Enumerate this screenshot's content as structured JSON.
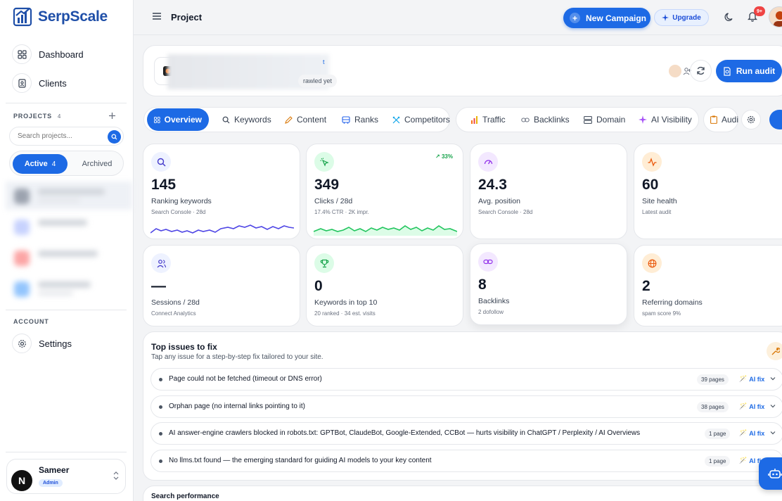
{
  "brand": {
    "name": "SerpScale"
  },
  "nav": {
    "dashboard": "Dashboard",
    "clients": "Clients",
    "settings": "Settings"
  },
  "projects": {
    "heading": "PROJECTS",
    "count": "4",
    "search_placeholder": "Search projects..."
  },
  "segment": {
    "active_label": "Active",
    "active_count": "4",
    "archived_label": "Archived"
  },
  "account": {
    "heading": "ACCOUNT"
  },
  "user": {
    "name": "Sameer",
    "initial": "N",
    "role": "Admin"
  },
  "topbar": {
    "title": "Project",
    "new_campaign": "New Campaign",
    "upgrade": "Upgrade",
    "notifications": "9+"
  },
  "project_card": {
    "tag": "t",
    "crawl_status": "rawled yet",
    "run_audit": "Run audit"
  },
  "tabs": [
    {
      "label": "Overview",
      "icon": "grid-icon"
    },
    {
      "label": "Keywords",
      "icon": "search-icon"
    },
    {
      "label": "Content",
      "icon": "pencil-icon"
    },
    {
      "label": "Ranks",
      "icon": "bus-icon"
    },
    {
      "label": "Competitors",
      "icon": "swords-icon"
    },
    {
      "label": "Traffic",
      "icon": "bar-chart-icon"
    },
    {
      "label": "Backlinks",
      "icon": "link-icon"
    },
    {
      "label": "Domain",
      "icon": "server-icon"
    },
    {
      "label": "AI Visibility",
      "icon": "sparkle-icon"
    },
    {
      "label": "Audi",
      "icon": "clipboard-icon"
    }
  ],
  "metrics": [
    {
      "value": "145",
      "label": "Ranking keywords",
      "sub": "Search Console · 28d",
      "icon": "search-icon",
      "color": "#6366f1",
      "spark": "#4f46e5"
    },
    {
      "value": "349",
      "label": "Clicks / 28d",
      "sub": "17.4% CTR · 2K impr.",
      "icon": "cursor-click-icon",
      "color": "#16a34a",
      "spark": "#22c55e",
      "trend": "33%"
    },
    {
      "value": "24.3",
      "label": "Avg. position",
      "sub": "Search Console · 28d",
      "icon": "gauge-icon",
      "color": "#9333ea"
    },
    {
      "value": "60",
      "label": "Site health",
      "sub": "Latest audit",
      "icon": "activity-icon",
      "color": "#ea580c"
    },
    {
      "value": "—",
      "label": "Sessions / 28d",
      "sub": "Connect Analytics",
      "icon": "users-icon",
      "color": "#4f46e5"
    },
    {
      "value": "0",
      "label": "Keywords in top 10",
      "sub": "20 ranked · 34 est. visits",
      "icon": "trophy-icon",
      "color": "#16a34a"
    },
    {
      "value": "8",
      "label": "Backlinks",
      "sub": "2 dofollow",
      "icon": "link-icon",
      "color": "#9333ea"
    },
    {
      "value": "2",
      "label": "Referring domains",
      "sub": "spam score 9%",
      "icon": "globe-icon",
      "color": "#ea580c"
    }
  ],
  "issues": {
    "title": "Top issues to fix",
    "subtitle": "Tap any issue for a step-by-step fix tailored to your site.",
    "fix_label": "AI fix",
    "items": [
      {
        "text": "Page could not be fetched (timeout or DNS error)",
        "pages": "39 pages"
      },
      {
        "text": "Orphan page (no internal links pointing to it)",
        "pages": "38 pages"
      },
      {
        "text": "AI answer-engine crawlers blocked in robots.txt: GPTBot, ClaudeBot, Google-Extended, CCBot — hurts visibility in ChatGPT / Perplexity / AI Overviews",
        "pages": "1 page"
      },
      {
        "text": "No llms.txt found — the emerging standard for guiding AI models to your key content",
        "pages": "1 page"
      }
    ]
  },
  "search_performance": {
    "title": "Search performance"
  },
  "colors": {
    "primary": "#1d6ae5",
    "brand": "#1f4fa8"
  }
}
